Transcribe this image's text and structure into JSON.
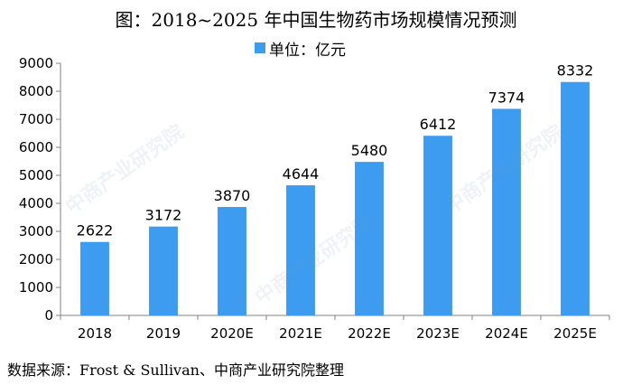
{
  "title": "图：2018~2025 年中国生物药市场规模情况预测",
  "source": "数据来源：Frost & Sullivan、中商产业研究院整理",
  "watermark": "中商产业研究院",
  "colors": {
    "bar": "#3d9cf0",
    "axis": "#808080",
    "text": "#000000"
  },
  "chart_data": {
    "type": "bar",
    "categories": [
      "2018",
      "2019",
      "2020E",
      "2021E",
      "2022E",
      "2023E",
      "2024E",
      "2025E"
    ],
    "series": [
      {
        "name": "单位：亿元",
        "values": [
          2622,
          3172,
          3870,
          4644,
          5480,
          6412,
          7374,
          8332
        ]
      }
    ],
    "ylim": [
      0,
      9000
    ],
    "yticks": [
      0,
      1000,
      2000,
      3000,
      4000,
      5000,
      6000,
      7000,
      8000,
      9000
    ],
    "grid": false,
    "legend_position": "top"
  }
}
